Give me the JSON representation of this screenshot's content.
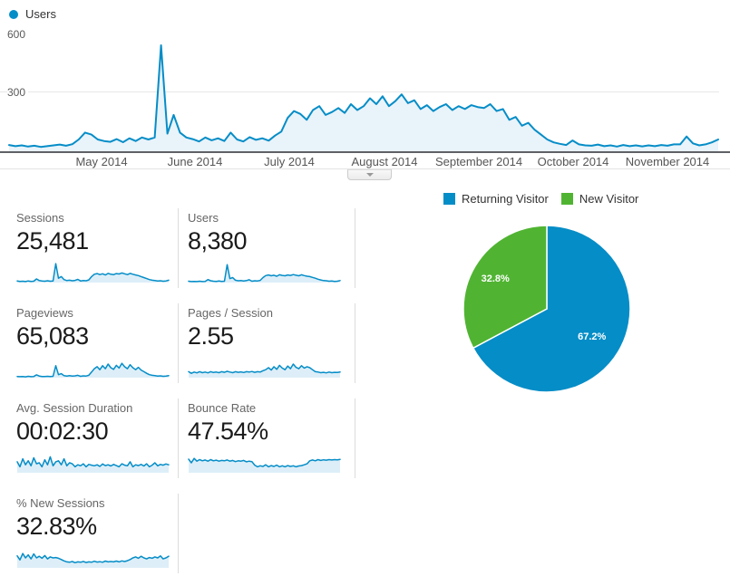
{
  "timeline": {
    "legend_label": "Users"
  },
  "metrics": [
    {
      "label": "Sessions",
      "value": "25,481"
    },
    {
      "label": "Users",
      "value": "8,380"
    },
    {
      "label": "Pageviews",
      "value": "65,083"
    },
    {
      "label": "Pages / Session",
      "value": "2.55"
    },
    {
      "label": "Avg. Session Duration",
      "value": "00:02:30"
    },
    {
      "label": "Bounce Rate",
      "value": "47.54%"
    },
    {
      "label": "% New Sessions",
      "value": "32.83%"
    }
  ],
  "colors": {
    "accent_blue": "#058dc7",
    "accent_green": "#50b432",
    "area_fill": "#e9f3fa"
  },
  "chart_data": [
    {
      "type": "area",
      "name": "users-over-time",
      "title": "Users",
      "x_labels": [
        "May 2014",
        "June 2014",
        "July 2014",
        "August 2014",
        "September 2014",
        "October 2014",
        "November 2014"
      ],
      "y_tick_labels": [
        "600",
        "300"
      ],
      "ylim": [
        0,
        650
      ],
      "grid": "horizontal-300",
      "legend_position": "top-left",
      "line_color": "#058dc7",
      "fill_color": "#e9f3fa",
      "values": [
        32,
        26,
        30,
        24,
        28,
        22,
        26,
        30,
        34,
        28,
        36,
        60,
        95,
        85,
        60,
        52,
        48,
        62,
        46,
        66,
        52,
        70,
        60,
        70,
        540,
        90,
        185,
        95,
        70,
        62,
        50,
        70,
        56,
        66,
        52,
        95,
        60,
        50,
        72,
        58,
        66,
        54,
        80,
        100,
        170,
        205,
        190,
        160,
        210,
        230,
        185,
        200,
        220,
        195,
        240,
        210,
        230,
        270,
        240,
        280,
        230,
        255,
        290,
        245,
        260,
        215,
        235,
        205,
        225,
        240,
        210,
        230,
        215,
        235,
        225,
        220,
        240,
        205,
        215,
        160,
        175,
        130,
        145,
        110,
        85,
        60,
        45,
        38,
        32,
        55,
        35,
        30,
        28,
        34,
        26,
        30,
        24,
        32,
        26,
        30,
        25,
        30,
        26,
        32,
        28,
        35,
        35,
        75,
        40,
        30,
        35,
        45,
        60
      ]
    },
    {
      "type": "pie",
      "name": "visitor-type-pie",
      "legend_position": "top",
      "slices": [
        {
          "label": "Returning Visitor",
          "value": 67.2,
          "pct_label": "67.2%",
          "color": "#058dc7"
        },
        {
          "label": "New Visitor",
          "value": 32.8,
          "pct_label": "32.8%",
          "color": "#50b432"
        }
      ]
    },
    {
      "type": "area",
      "name": "sessions-sparkline",
      "metric": "Sessions",
      "ylim": [
        0,
        1
      ],
      "line_color": "#058dc7",
      "fill_color": "#ddeef8",
      "values": [
        0.08,
        0.06,
        0.07,
        0.05,
        0.08,
        0.06,
        0.07,
        0.18,
        0.1,
        0.08,
        0.07,
        0.09,
        0.07,
        0.08,
        0.95,
        0.22,
        0.3,
        0.15,
        0.1,
        0.12,
        0.09,
        0.11,
        0.16,
        0.08,
        0.1,
        0.09,
        0.13,
        0.3,
        0.42,
        0.45,
        0.4,
        0.44,
        0.38,
        0.46,
        0.42,
        0.4,
        0.45,
        0.43,
        0.48,
        0.44,
        0.4,
        0.46,
        0.42,
        0.38,
        0.35,
        0.3,
        0.25,
        0.2,
        0.15,
        0.12,
        0.1,
        0.08,
        0.09,
        0.07,
        0.08,
        0.12
      ]
    },
    {
      "type": "area",
      "name": "users-sparkline",
      "metric": "Users",
      "ylim": [
        0,
        1
      ],
      "line_color": "#058dc7",
      "fill_color": "#ddeef8",
      "values": [
        0.07,
        0.05,
        0.06,
        0.05,
        0.07,
        0.05,
        0.06,
        0.15,
        0.09,
        0.07,
        0.06,
        0.08,
        0.06,
        0.07,
        0.9,
        0.2,
        0.25,
        0.12,
        0.09,
        0.1,
        0.08,
        0.1,
        0.14,
        0.07,
        0.09,
        0.08,
        0.11,
        0.25,
        0.35,
        0.38,
        0.34,
        0.37,
        0.32,
        0.39,
        0.36,
        0.34,
        0.38,
        0.36,
        0.4,
        0.37,
        0.34,
        0.39,
        0.35,
        0.32,
        0.3,
        0.26,
        0.22,
        0.17,
        0.13,
        0.1,
        0.09,
        0.07,
        0.08,
        0.06,
        0.07,
        0.1
      ]
    },
    {
      "type": "area",
      "name": "pageviews-sparkline",
      "metric": "Pageviews",
      "ylim": [
        0,
        1
      ],
      "line_color": "#058dc7",
      "fill_color": "#ddeef8",
      "values": [
        0.06,
        0.05,
        0.06,
        0.04,
        0.07,
        0.05,
        0.06,
        0.14,
        0.08,
        0.06,
        0.06,
        0.07,
        0.06,
        0.07,
        0.6,
        0.15,
        0.2,
        0.1,
        0.08,
        0.1,
        0.08,
        0.09,
        0.12,
        0.07,
        0.09,
        0.08,
        0.12,
        0.28,
        0.45,
        0.55,
        0.4,
        0.6,
        0.45,
        0.68,
        0.5,
        0.42,
        0.62,
        0.48,
        0.72,
        0.55,
        0.45,
        0.65,
        0.5,
        0.4,
        0.52,
        0.38,
        0.3,
        0.22,
        0.15,
        0.12,
        0.1,
        0.08,
        0.09,
        0.07,
        0.08,
        0.1
      ]
    },
    {
      "type": "area",
      "name": "pages-session-sparkline",
      "metric": "Pages / Session",
      "ylim": [
        0,
        1
      ],
      "line_color": "#058dc7",
      "fill_color": "#ddeef8",
      "values": [
        0.3,
        0.22,
        0.28,
        0.24,
        0.3,
        0.25,
        0.28,
        0.24,
        0.3,
        0.26,
        0.28,
        0.25,
        0.3,
        0.27,
        0.32,
        0.28,
        0.25,
        0.3,
        0.27,
        0.29,
        0.26,
        0.3,
        0.28,
        0.31,
        0.27,
        0.3,
        0.28,
        0.35,
        0.4,
        0.5,
        0.38,
        0.55,
        0.42,
        0.62,
        0.48,
        0.4,
        0.58,
        0.45,
        0.68,
        0.52,
        0.45,
        0.6,
        0.48,
        0.55,
        0.5,
        0.4,
        0.3,
        0.28,
        0.25,
        0.27,
        0.24,
        0.28,
        0.25,
        0.27,
        0.26,
        0.28
      ]
    },
    {
      "type": "area",
      "name": "avg-duration-sparkline",
      "metric": "Avg. Session Duration",
      "ylim": [
        0,
        1
      ],
      "line_color": "#058dc7",
      "fill_color": "#ddeef8",
      "values": [
        0.55,
        0.3,
        0.7,
        0.4,
        0.6,
        0.35,
        0.75,
        0.45,
        0.5,
        0.3,
        0.65,
        0.4,
        0.8,
        0.35,
        0.55,
        0.6,
        0.4,
        0.7,
        0.35,
        0.5,
        0.45,
        0.3,
        0.4,
        0.35,
        0.45,
        0.3,
        0.42,
        0.38,
        0.35,
        0.4,
        0.32,
        0.44,
        0.36,
        0.4,
        0.34,
        0.42,
        0.36,
        0.3,
        0.45,
        0.38,
        0.35,
        0.55,
        0.3,
        0.4,
        0.36,
        0.42,
        0.34,
        0.45,
        0.3,
        0.38,
        0.5,
        0.35,
        0.42,
        0.38,
        0.44,
        0.4
      ]
    },
    {
      "type": "area",
      "name": "bounce-rate-sparkline",
      "metric": "Bounce Rate",
      "ylim": [
        0,
        1
      ],
      "line_color": "#058dc7",
      "fill_color": "#ddeef8",
      "values": [
        0.68,
        0.5,
        0.72,
        0.58,
        0.66,
        0.6,
        0.64,
        0.58,
        0.66,
        0.6,
        0.63,
        0.58,
        0.62,
        0.6,
        0.64,
        0.58,
        0.62,
        0.56,
        0.6,
        0.58,
        0.62,
        0.55,
        0.58,
        0.56,
        0.38,
        0.3,
        0.35,
        0.32,
        0.4,
        0.3,
        0.36,
        0.32,
        0.38,
        0.3,
        0.35,
        0.3,
        0.36,
        0.32,
        0.35,
        0.3,
        0.34,
        0.36,
        0.4,
        0.45,
        0.6,
        0.64,
        0.6,
        0.66,
        0.62,
        0.65,
        0.63,
        0.66,
        0.64,
        0.66,
        0.65,
        0.67
      ]
    },
    {
      "type": "area",
      "name": "new-sessions-sparkline",
      "metric": "% New Sessions",
      "ylim": [
        0,
        1
      ],
      "line_color": "#058dc7",
      "fill_color": "#ddeef8",
      "values": [
        0.6,
        0.4,
        0.72,
        0.5,
        0.65,
        0.45,
        0.7,
        0.5,
        0.58,
        0.48,
        0.62,
        0.45,
        0.55,
        0.5,
        0.52,
        0.48,
        0.42,
        0.35,
        0.3,
        0.28,
        0.32,
        0.26,
        0.3,
        0.28,
        0.32,
        0.27,
        0.3,
        0.28,
        0.33,
        0.29,
        0.31,
        0.28,
        0.34,
        0.3,
        0.32,
        0.3,
        0.34,
        0.3,
        0.35,
        0.32,
        0.36,
        0.42,
        0.5,
        0.55,
        0.48,
        0.58,
        0.5,
        0.45,
        0.52,
        0.48,
        0.55,
        0.5,
        0.6,
        0.45,
        0.5,
        0.58
      ]
    }
  ]
}
